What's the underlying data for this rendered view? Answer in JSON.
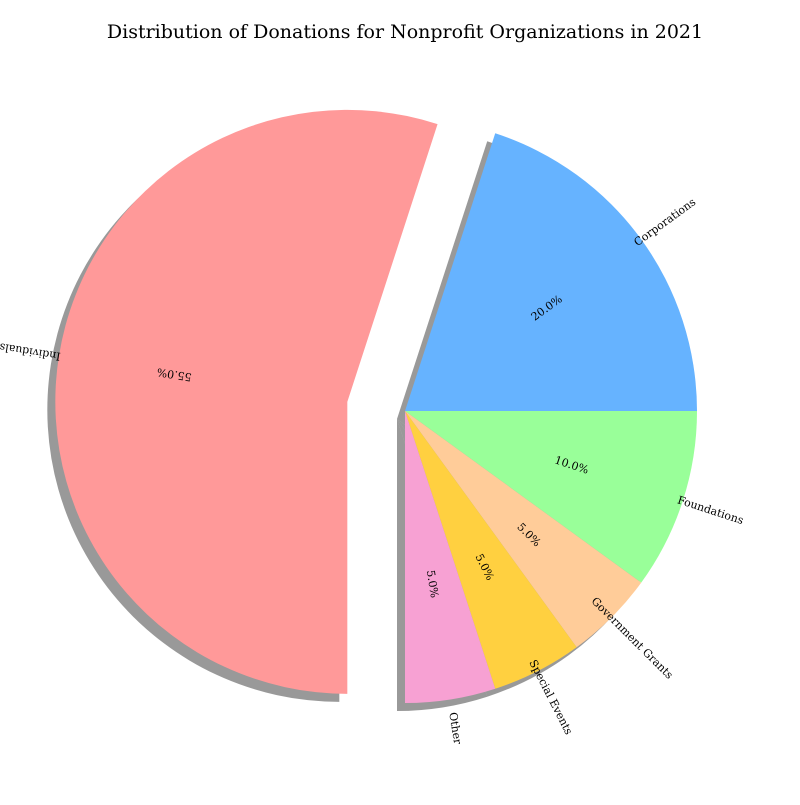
{
  "chart_data": {
    "type": "pie",
    "title": "Distribution of Donations for Nonprofit Organizations in 2021",
    "categories": [
      "Individuals",
      "Corporations",
      "Foundations",
      "Government Grants",
      "Special Events",
      "Other"
    ],
    "values": [
      55,
      20,
      10,
      5,
      5,
      5
    ],
    "value_labels": [
      "55.0%",
      "20.0%",
      "10.0%",
      "5.0%",
      "5.0%",
      "5.0%"
    ],
    "colors": [
      "#ff9999",
      "#66b3ff",
      "#99ff99",
      "#ffcc99",
      "#ffd040",
      "#f7a1d3"
    ],
    "exploded": [
      "Individuals"
    ],
    "shadow": true,
    "legend": "none"
  }
}
